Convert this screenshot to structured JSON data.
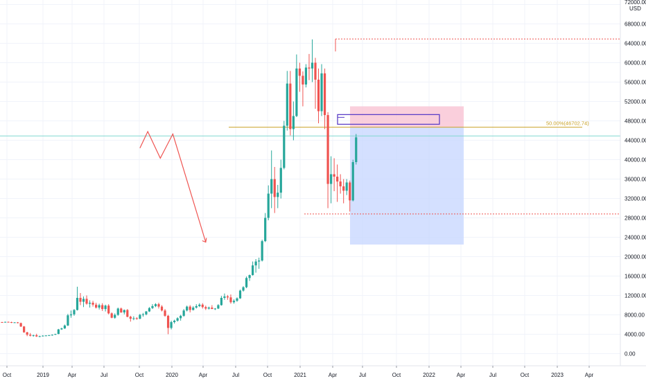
{
  "window": {
    "currency_label": "USD",
    "top_price_label": "72000.00"
  },
  "colors": {
    "up": "#26a69a",
    "down": "#ef5350",
    "grid": "#f0f3fa",
    "axis_line": "#e0e3eb",
    "text": "#131722",
    "current_price_line": "#80d8d0",
    "fib_line": "#c9a227",
    "level_line": "#ef5350",
    "target_zone": "#c9d8ff",
    "stop_zone": "#f8bfd0",
    "entry_box": "#5b3fc7",
    "projection": "#ef5350"
  },
  "price_axis": {
    "labels": [
      "72000.00",
      "68000.00",
      "64000.00",
      "60000.00",
      "56000.00",
      "52000.00",
      "48000.00",
      "44000.00",
      "40000.00",
      "36000.00",
      "32000.00",
      "28000.00",
      "24000.00",
      "20000.00",
      "16000.00",
      "12000.00",
      "8000.00",
      "4000.00",
      "0.00"
    ]
  },
  "time_axis": {
    "labels": [
      "Oct",
      "2019",
      "Apr",
      "Jul",
      "Oct",
      "2020",
      "Apr",
      "Jul",
      "Oct",
      "2021",
      "Apr",
      "Jul",
      "Oct",
      "2022",
      "Apr",
      "Jul",
      "Oct",
      "2023",
      "Apr"
    ]
  },
  "annotations": {
    "fib_label": "50.00%(46702.74)"
  },
  "chart_data": {
    "type": "candlestick",
    "symbol_currency": "USD",
    "x_unit": "week",
    "ylim": [
      -2000,
      73000
    ],
    "x_ticks": [
      "Oct",
      "2019",
      "Apr",
      "Jul",
      "Oct",
      "2020",
      "Apr",
      "Jul",
      "Oct",
      "2021",
      "Apr",
      "Jul",
      "Oct",
      "2022",
      "Apr",
      "Jul",
      "Oct",
      "2023",
      "Apr"
    ],
    "y_ticks": [
      0,
      4000,
      8000,
      12000,
      16000,
      20000,
      24000,
      28000,
      32000,
      36000,
      40000,
      44000,
      48000,
      52000,
      56000,
      60000,
      64000,
      68000,
      72000
    ],
    "fib_level": {
      "label": "50.00%(46702.74)",
      "value": 46702.74
    },
    "resistance_level": 64900,
    "support_level": 28800,
    "current_price_line": 44900,
    "short_position": {
      "stop_zone": [
        46700,
        51000
      ],
      "target_zone": [
        22500,
        46700
      ],
      "entry_zone": [
        47300,
        49300
      ]
    },
    "projection_path": [
      [
        44.0,
        42400
      ],
      [
        46.5,
        45800
      ],
      [
        50.5,
        40300
      ],
      [
        54.5,
        45300
      ],
      [
        65.0,
        23000
      ]
    ],
    "candles": [
      [
        6500,
        6550,
        6420,
        6480
      ],
      [
        6480,
        6600,
        6400,
        6550
      ],
      [
        6550,
        6620,
        6450,
        6500
      ],
      [
        6500,
        6580,
        6300,
        6400
      ],
      [
        6400,
        6500,
        6350,
        6450
      ],
      [
        6450,
        6520,
        6250,
        6300
      ],
      [
        6300,
        6400,
        5500,
        5600
      ],
      [
        5600,
        5700,
        4300,
        4400
      ],
      [
        4400,
        4500,
        3600,
        3900
      ],
      [
        3900,
        4250,
        3550,
        3700
      ],
      [
        3700,
        3900,
        3500,
        3800
      ],
      [
        3800,
        4100,
        3450,
        3550
      ],
      [
        3550,
        3700,
        3400,
        3600
      ],
      [
        3600,
        3800,
        3550,
        3700
      ],
      [
        3700,
        3800,
        3600,
        3750
      ],
      [
        3750,
        3850,
        3650,
        3800
      ],
      [
        3800,
        3950,
        3700,
        3900
      ],
      [
        3900,
        4100,
        3850,
        4050
      ],
      [
        4050,
        5100,
        4000,
        5000
      ],
      [
        5000,
        5350,
        4900,
        5200
      ],
      [
        5200,
        6000,
        5100,
        5800
      ],
      [
        5800,
        8200,
        5700,
        7900
      ],
      [
        7900,
        8900,
        7400,
        8100
      ],
      [
        8100,
        9200,
        7800,
        9000
      ],
      [
        9000,
        13800,
        8900,
        11500
      ],
      [
        11500,
        12500,
        10000,
        10700
      ],
      [
        10700,
        11800,
        9600,
        11300
      ],
      [
        11300,
        12000,
        10100,
        10300
      ],
      [
        10300,
        11000,
        9500,
        10500
      ],
      [
        10500,
        10900,
        9700,
        10100
      ],
      [
        10100,
        10500,
        9300,
        9500
      ],
      [
        9500,
        10300,
        9100,
        10000
      ],
      [
        10000,
        10400,
        8800,
        9200
      ],
      [
        9200,
        10100,
        8700,
        9900
      ],
      [
        9900,
        10200,
        8100,
        8300
      ],
      [
        8300,
        8500,
        7300,
        7400
      ],
      [
        7400,
        8300,
        7200,
        8000
      ],
      [
        8000,
        9500,
        7800,
        9300
      ],
      [
        9300,
        9500,
        8400,
        8500
      ],
      [
        8500,
        9100,
        8100,
        9000
      ],
      [
        9000,
        9200,
        7500,
        7600
      ],
      [
        7600,
        7800,
        6600,
        7200
      ],
      [
        7200,
        7700,
        6900,
        7300
      ],
      [
        7300,
        7500,
        7000,
        7200
      ],
      [
        7200,
        8200,
        7100,
        8000
      ],
      [
        8000,
        8400,
        7600,
        8100
      ],
      [
        8100,
        8800,
        7900,
        8700
      ],
      [
        8700,
        9600,
        8600,
        9400
      ],
      [
        9400,
        10200,
        9200,
        9800
      ],
      [
        9800,
        10400,
        9600,
        10200
      ],
      [
        10200,
        10500,
        9300,
        9700
      ],
      [
        9700,
        10000,
        8700,
        8900
      ],
      [
        8900,
        9200,
        7600,
        7800
      ],
      [
        7800,
        8000,
        4000,
        5300
      ],
      [
        5300,
        6800,
        5000,
        6500
      ],
      [
        6500,
        7000,
        6200,
        6800
      ],
      [
        6800,
        7500,
        6600,
        7300
      ],
      [
        7300,
        8000,
        6800,
        7800
      ],
      [
        7800,
        9200,
        7600,
        8900
      ],
      [
        8900,
        9900,
        8700,
        9700
      ],
      [
        9700,
        10000,
        8500,
        9000
      ],
      [
        9000,
        9800,
        8900,
        9500
      ],
      [
        9500,
        10200,
        9300,
        9800
      ],
      [
        9800,
        10400,
        9600,
        10100
      ],
      [
        10100,
        10400,
        9300,
        9600
      ],
      [
        9600,
        9900,
        9000,
        9300
      ],
      [
        9300,
        9700,
        9100,
        9500
      ],
      [
        9500,
        10000,
        9200,
        9200
      ],
      [
        9200,
        9400,
        9000,
        9300
      ],
      [
        9300,
        10200,
        9200,
        10000
      ],
      [
        10000,
        11900,
        9900,
        11500
      ],
      [
        11500,
        12400,
        11100,
        11800
      ],
      [
        11800,
        12100,
        11100,
        11600
      ],
      [
        11600,
        12200,
        10300,
        10600
      ],
      [
        10600,
        11200,
        10300,
        10900
      ],
      [
        10900,
        11600,
        10700,
        11400
      ],
      [
        11400,
        13200,
        11300,
        13000
      ],
      [
        13000,
        13900,
        12800,
        13700
      ],
      [
        13700,
        15900,
        13500,
        15600
      ],
      [
        15600,
        16300,
        15000,
        16200
      ],
      [
        16200,
        19000,
        16100,
        18200
      ],
      [
        18200,
        19500,
        16700,
        19000
      ],
      [
        19000,
        19800,
        17500,
        19200
      ],
      [
        19200,
        23500,
        19000,
        23200
      ],
      [
        23200,
        29000,
        23000,
        28000
      ],
      [
        28000,
        34700,
        27500,
        33000
      ],
      [
        33000,
        41900,
        30000,
        36000
      ],
      [
        36000,
        38500,
        29000,
        32300
      ],
      [
        32300,
        34800,
        30000,
        33200
      ],
      [
        33200,
        40000,
        32000,
        38300
      ],
      [
        38300,
        48000,
        38000,
        47000
      ],
      [
        47000,
        58300,
        46000,
        55700
      ],
      [
        55700,
        58300,
        45000,
        46300
      ],
      [
        46300,
        52000,
        44000,
        49000
      ],
      [
        49000,
        61700,
        48800,
        58800
      ],
      [
        58800,
        60000,
        54000,
        57300
      ],
      [
        57300,
        58200,
        51000,
        55500
      ],
      [
        55500,
        59700,
        54900,
        59000
      ],
      [
        59000,
        61800,
        56400,
        58800
      ],
      [
        58800,
        64800,
        56000,
        60000
      ],
      [
        60000,
        61000,
        50500,
        56500
      ],
      [
        56500,
        58800,
        47500,
        50000
      ],
      [
        50000,
        59700,
        49000,
        57800
      ],
      [
        57800,
        58800,
        46300,
        49200
      ],
      [
        49200,
        49800,
        30000,
        35000
      ],
      [
        35000,
        40700,
        31000,
        37000
      ],
      [
        37000,
        40300,
        33500,
        36500
      ],
      [
        36500,
        39000,
        31300,
        35500
      ],
      [
        35500,
        37000,
        33000,
        34500
      ],
      [
        34500,
        36000,
        31000,
        33600
      ],
      [
        33600,
        36000,
        32700,
        35300
      ],
      [
        35300,
        35700,
        29300,
        31600
      ],
      [
        31600,
        40000,
        31400,
        39500
      ],
      [
        39500,
        45300,
        39000,
        44600
      ]
    ]
  }
}
